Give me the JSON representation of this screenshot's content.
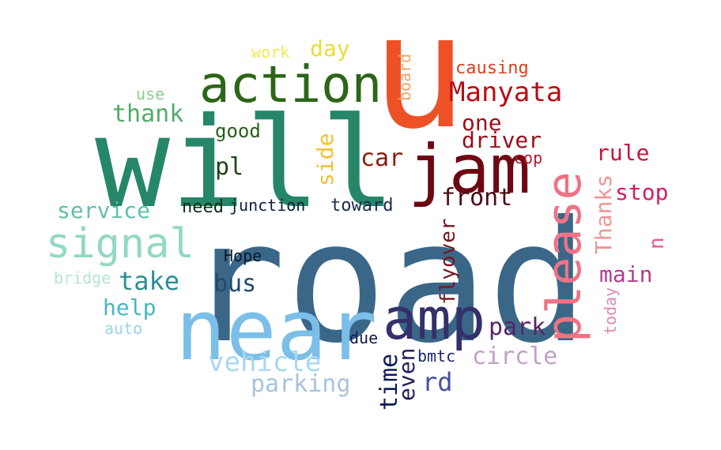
{
  "words": {
    "road": {
      "text": "road",
      "color": "#3a6788"
    },
    "will": {
      "text": "will",
      "color": "#268669"
    },
    "u": {
      "text": "u",
      "color": "#ee5126"
    },
    "please": {
      "text": "please",
      "color": "#ef7385"
    },
    "near": {
      "text": "near",
      "color": "#7bbfe9"
    },
    "jam": {
      "text": "jam",
      "color": "#6d0712"
    },
    "amp": {
      "text": "amp",
      "color": "#33306a"
    },
    "action": {
      "text": "action",
      "color": "#2c6618"
    },
    "signal": {
      "text": "signal",
      "color": "#91d8c5"
    },
    "manyata": {
      "text": "Manyata",
      "color": "#b60e14"
    },
    "vehicle": {
      "text": "vehicle",
      "color": "#a8d8f0"
    },
    "parking": {
      "text": "parking",
      "color": "#a8c3db"
    },
    "front": {
      "text": "front",
      "color": "#4a0c16"
    },
    "circle": {
      "text": "circle",
      "color": "#c49fc9"
    },
    "park": {
      "text": "park",
      "color": "#5b2466"
    },
    "take": {
      "text": "take",
      "color": "#2b8e91"
    },
    "bus": {
      "text": "bus",
      "color": "#1e4a6e"
    },
    "rd": {
      "text": "rd",
      "color": "#4a4f9a"
    },
    "main": {
      "text": "main",
      "color": "#b13c8e"
    },
    "stop": {
      "text": "stop",
      "color": "#d81b60"
    },
    "thanks": {
      "text": "Thanks",
      "color": "#f09595"
    },
    "time": {
      "text": "time",
      "color": "#0e1a58"
    },
    "even": {
      "text": "even",
      "color": "#24205a"
    },
    "flyover": {
      "text": "flyover",
      "color": "#7a1620"
    },
    "side": {
      "text": "side",
      "color": "#f1c232"
    },
    "car": {
      "text": "car",
      "color": "#8a1d0e"
    },
    "driver": {
      "text": "driver",
      "color": "#9a0d1b"
    },
    "one": {
      "text": "one",
      "color": "#a40c1a"
    },
    "rule": {
      "text": "rule",
      "color": "#c7143e"
    },
    "thank": {
      "text": "thank",
      "color": "#50ad68"
    },
    "service": {
      "text": "service",
      "color": "#5fbfab"
    },
    "help": {
      "text": "help",
      "color": "#49b5c5"
    },
    "pl": {
      "text": "pl",
      "color": "#1e4318"
    },
    "good": {
      "text": "good",
      "color": "#285e1c"
    },
    "need": {
      "text": "need",
      "color": "#0d2b12"
    },
    "junction": {
      "text": "junction",
      "color": "#0c1e3c"
    },
    "toward": {
      "text": "toward",
      "color": "#1a2a4e"
    },
    "day": {
      "text": "day",
      "color": "#e9dc3b"
    },
    "work": {
      "text": "work",
      "color": "#f2eb4a"
    },
    "board": {
      "text": "board",
      "color": "#f0a56b"
    },
    "causing": {
      "text": "causing",
      "color": "#d9411e"
    },
    "cop": {
      "text": "cop",
      "color": "#bc1432"
    },
    "n": {
      "text": "n",
      "color": "#e55a8e"
    },
    "today": {
      "text": "today",
      "color": "#dc8ab6"
    },
    "use": {
      "text": "use",
      "color": "#88cf8e"
    },
    "bridge": {
      "text": "bridge",
      "color": "#b5e4d5"
    },
    "auto": {
      "text": "auto",
      "color": "#9bd4e4"
    },
    "hope": {
      "text": "Hope",
      "color": "#0a1a2e"
    },
    "due": {
      "text": "due",
      "color": "#101c4c"
    },
    "bmtc": {
      "text": "bmtc",
      "color": "#1a2a6c"
    }
  }
}
